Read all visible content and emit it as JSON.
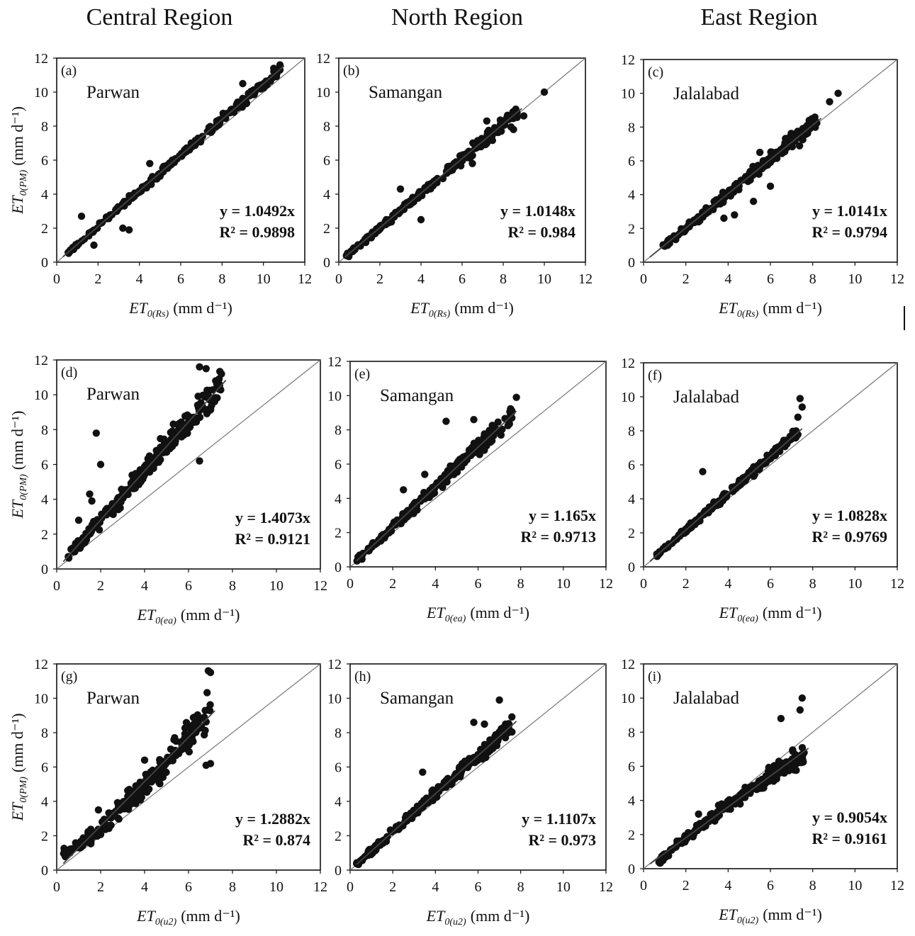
{
  "column_titles": [
    "Central Region",
    "North Region",
    "East Region"
  ],
  "chart_data": [
    {
      "type": "scatter",
      "panel_label": "(a)",
      "site": "Parwan",
      "equation": "y = 1.0492x",
      "r2": "R² = 0.9898",
      "slope": 1.0492,
      "r2_value": 0.9898,
      "xlim": [
        0,
        12
      ],
      "ylim": [
        0,
        12
      ],
      "xticks": [
        0,
        2,
        4,
        6,
        8,
        10,
        12
      ],
      "yticks": [
        0,
        2,
        4,
        6,
        8,
        10,
        12
      ],
      "xlabel_main": "ET",
      "xlabel_sub": "0(Rs)",
      "xlabel_unit": "(mm d⁻¹)",
      "ylabel_main": "ET",
      "ylabel_sub": "0(PM)",
      "ylabel_unit": "(mm d⁻¹)",
      "x_range": [
        0.5,
        10.8
      ],
      "spread": 0.2,
      "curve": 0,
      "outliers": [
        [
          1.2,
          2.7
        ],
        [
          1.8,
          1.0
        ],
        [
          3.2,
          2.0
        ],
        [
          3.5,
          1.9
        ],
        [
          4.5,
          5.8
        ],
        [
          5.2,
          5.6
        ],
        [
          9,
          10.5
        ],
        [
          10.5,
          11.4
        ],
        [
          10.8,
          11.6
        ]
      ]
    },
    {
      "type": "scatter",
      "panel_label": "(b)",
      "site": "Samangan",
      "equation": "y = 1.0148x",
      "r2": "R² = 0.984",
      "slope": 1.0148,
      "r2_value": 0.984,
      "xlim": [
        0,
        12
      ],
      "ylim": [
        0,
        12
      ],
      "xticks": [
        0,
        2,
        4,
        6,
        8,
        10,
        12
      ],
      "yticks": [
        0,
        2,
        4,
        6,
        8,
        10,
        12
      ],
      "xlabel_main": "ET",
      "xlabel_sub": "0(Rs)",
      "xlabel_unit": "(mm d⁻¹)",
      "ylabel_main": "",
      "ylabel_sub": "",
      "ylabel_unit": "",
      "x_range": [
        0.3,
        8.7
      ],
      "spread": 0.25,
      "curve": 0,
      "outliers": [
        [
          4.0,
          2.5
        ],
        [
          6.5,
          5.8
        ],
        [
          8.5,
          7.8
        ],
        [
          9.0,
          8.6
        ],
        [
          10.0,
          10.0
        ],
        [
          3.0,
          4.3
        ],
        [
          7.2,
          8.3
        ]
      ]
    },
    {
      "type": "scatter",
      "panel_label": "(c)",
      "site": "Jalalabad",
      "equation": "y = 1.0141x",
      "r2": "R² = 0.9794",
      "slope": 1.0141,
      "r2_value": 0.9794,
      "xlim": [
        0,
        12
      ],
      "ylim": [
        0,
        12
      ],
      "xticks": [
        0,
        2,
        4,
        6,
        8,
        10,
        12
      ],
      "yticks": [
        0,
        2,
        4,
        6,
        8,
        10,
        12
      ],
      "xlabel_main": "ET",
      "xlabel_sub": "0(Rs)",
      "xlabel_unit": "(mm d⁻¹)",
      "ylabel_main": "",
      "ylabel_sub": "",
      "ylabel_unit": "",
      "x_range": [
        0.8,
        8.2
      ],
      "spread": 0.3,
      "curve": 0,
      "outliers": [
        [
          4.3,
          2.8
        ],
        [
          5.2,
          3.6
        ],
        [
          3.8,
          2.6
        ],
        [
          5.5,
          6.5
        ],
        [
          9.2,
          10.0
        ],
        [
          8.8,
          9.5
        ],
        [
          6.0,
          4.5
        ]
      ]
    },
    {
      "type": "scatter",
      "panel_label": "(d)",
      "site": "Parwan",
      "equation": "y = 1.4073x",
      "r2": "R² = 0.9121",
      "slope": 1.4073,
      "r2_value": 0.9121,
      "xlim": [
        0,
        12
      ],
      "ylim": [
        0,
        12
      ],
      "xticks": [
        0,
        2,
        4,
        6,
        8,
        10,
        12
      ],
      "yticks": [
        0,
        2,
        4,
        6,
        8,
        10,
        12
      ],
      "xlabel_main": "ET",
      "xlabel_sub": "0(ea)",
      "xlabel_unit": "(mm d⁻¹)",
      "ylabel_main": "ET",
      "ylabel_sub": "0(PM)",
      "ylabel_unit": "(mm d⁻¹)",
      "x_range": [
        0.4,
        7.5
      ],
      "spread": 0.55,
      "curve": 0,
      "outliers": [
        [
          1.8,
          7.8
        ],
        [
          2.0,
          6.0
        ],
        [
          1.5,
          4.3
        ],
        [
          1.6,
          3.9
        ],
        [
          1.0,
          2.8
        ],
        [
          6.5,
          6.2
        ],
        [
          7.5,
          11.2
        ],
        [
          6.5,
          11.6
        ],
        [
          6.8,
          11.5
        ]
      ]
    },
    {
      "type": "scatter",
      "panel_label": "(e)",
      "site": "Samangan",
      "equation": "y = 1.165x",
      "r2": "R² = 0.9713",
      "slope": 1.165,
      "r2_value": 0.9713,
      "xlim": [
        0,
        12
      ],
      "ylim": [
        0,
        12
      ],
      "xticks": [
        0,
        2,
        4,
        6,
        8,
        10,
        12
      ],
      "yticks": [
        0,
        2,
        4,
        6,
        8,
        10,
        12
      ],
      "xlabel_main": "ET",
      "xlabel_sub": "0(ea)",
      "xlabel_unit": "(mm d⁻¹)",
      "ylabel_main": "",
      "ylabel_sub": "",
      "ylabel_unit": "",
      "x_range": [
        0.3,
        7.6
      ],
      "spread": 0.3,
      "curve": 0,
      "outliers": [
        [
          4.5,
          8.5
        ],
        [
          5.8,
          8.6
        ],
        [
          2.5,
          4.5
        ],
        [
          7.8,
          9.9
        ],
        [
          3.5,
          5.4
        ]
      ]
    },
    {
      "type": "scatter",
      "panel_label": "(f)",
      "site": "Jalalabad",
      "equation": "y = 1.0828x",
      "r2": "R² = 0.9769",
      "slope": 1.0828,
      "r2_value": 0.9769,
      "xlim": [
        0,
        12
      ],
      "ylim": [
        0,
        12
      ],
      "xticks": [
        0,
        2,
        4,
        6,
        8,
        10,
        12
      ],
      "yticks": [
        0,
        2,
        4,
        6,
        8,
        10,
        12
      ],
      "xlabel_main": "ET",
      "xlabel_sub": "0(ea)",
      "xlabel_unit": "(mm d⁻¹)",
      "ylabel_main": "",
      "ylabel_sub": "",
      "ylabel_unit": "",
      "x_range": [
        0.6,
        7.3
      ],
      "spread": 0.2,
      "curve": 0,
      "outliers": [
        [
          2.8,
          5.6
        ],
        [
          7.4,
          9.9
        ],
        [
          7.5,
          9.4
        ],
        [
          7.3,
          8.8
        ]
      ]
    },
    {
      "type": "scatter",
      "panel_label": "(g)",
      "site": "Parwan",
      "equation": "y = 1.2882x",
      "r2": "R² = 0.874",
      "slope": 1.2882,
      "r2_value": 0.874,
      "xlim": [
        0,
        12
      ],
      "ylim": [
        0,
        12
      ],
      "xticks": [
        0,
        2,
        4,
        6,
        8,
        10,
        12
      ],
      "yticks": [
        0,
        2,
        4,
        6,
        8,
        10,
        12
      ],
      "xlabel_main": "ET",
      "xlabel_sub": "0(u2)",
      "xlabel_unit": "(mm d⁻¹)",
      "ylabel_main": "ET",
      "ylabel_sub": "0(PM)",
      "ylabel_unit": "(mm d⁻¹)",
      "x_range": [
        0.3,
        7.0
      ],
      "spread": 0.6,
      "curve": 0.12,
      "outliers": [
        [
          1.9,
          3.5
        ],
        [
          4.0,
          6.4
        ],
        [
          6.8,
          6.1
        ],
        [
          7.0,
          6.2
        ],
        [
          6.9,
          11.6
        ],
        [
          7.0,
          11.5
        ]
      ]
    },
    {
      "type": "scatter",
      "panel_label": "(h)",
      "site": "Samangan",
      "equation": "y = 1.1107x",
      "r2": "R² = 0.973",
      "slope": 1.1107,
      "r2_value": 0.973,
      "xlim": [
        0,
        12
      ],
      "ylim": [
        0,
        12
      ],
      "xticks": [
        0,
        2,
        4,
        6,
        8,
        10,
        12
      ],
      "yticks": [
        0,
        2,
        4,
        6,
        8,
        10,
        12
      ],
      "xlabel_main": "ET",
      "xlabel_sub": "0(u2)",
      "xlabel_unit": "(mm d⁻¹)",
      "ylabel_main": "",
      "ylabel_sub": "",
      "ylabel_unit": "",
      "x_range": [
        0.3,
        7.6
      ],
      "spread": 0.3,
      "curve": 0,
      "outliers": [
        [
          3.4,
          5.7
        ],
        [
          5.8,
          8.6
        ],
        [
          6.3,
          8.5
        ],
        [
          7.0,
          9.9
        ]
      ]
    },
    {
      "type": "scatter",
      "panel_label": "(i)",
      "site": "Jalalabad",
      "equation": "y = 0.9054x",
      "r2": "R² = 0.9161",
      "slope": 0.9054,
      "r2_value": 0.9161,
      "xlim": [
        0,
        12
      ],
      "ylim": [
        0,
        12
      ],
      "xticks": [
        0,
        2,
        4,
        6,
        8,
        10,
        12
      ],
      "yticks": [
        0,
        2,
        4,
        6,
        8,
        10,
        12
      ],
      "xlabel_main": "ET",
      "xlabel_sub": "0(u2)",
      "xlabel_unit": "(mm d⁻¹)",
      "ylabel_main": "",
      "ylabel_sub": "",
      "ylabel_unit": "",
      "x_range": [
        0.7,
        7.6
      ],
      "spread": 0.35,
      "curve": -0.06,
      "outliers": [
        [
          7.5,
          10.0
        ],
        [
          7.4,
          9.3
        ],
        [
          6.5,
          8.8
        ],
        [
          2.6,
          3.2
        ]
      ]
    }
  ]
}
